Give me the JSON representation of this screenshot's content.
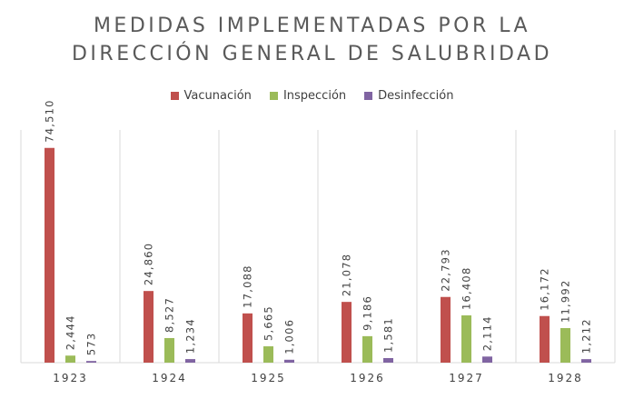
{
  "title_lines": [
    "MEDIDAS IMPLEMENTADAS POR LA",
    "DIRECCIÓN GENERAL DE SALUBRIDAD"
  ],
  "legend_position": "top",
  "chart_data": {
    "type": "bar",
    "title": "MEDIDAS IMPLEMENTADAS POR LA DIRECCIÓN GENERAL DE SALUBRIDAD",
    "categories": [
      "1923",
      "1924",
      "1925",
      "1926",
      "1927",
      "1928"
    ],
    "series": [
      {
        "name": "Vacunación",
        "color": "#c0504d",
        "values": [
          74510,
          24860,
          17088,
          21078,
          22793,
          16172
        ],
        "labels": [
          "74,510",
          "24,860",
          "17,088",
          "21,078",
          "22,793",
          "16,172"
        ]
      },
      {
        "name": "Inspección",
        "color": "#9bbb59",
        "values": [
          2444,
          8527,
          5665,
          9186,
          16408,
          11992
        ],
        "labels": [
          "2,444",
          "8,527",
          "5,665",
          "9,186",
          "16,408",
          "11,992"
        ]
      },
      {
        "name": "Desinfección",
        "color": "#8064a2",
        "values": [
          573,
          1234,
          1006,
          1581,
          2114,
          1212
        ],
        "labels": [
          "573",
          "1,234",
          "1,006",
          "1,581",
          "2,114",
          "1,212"
        ]
      }
    ],
    "ylim": [
      0,
      82000
    ],
    "grid": false,
    "vertical_separators": true
  }
}
